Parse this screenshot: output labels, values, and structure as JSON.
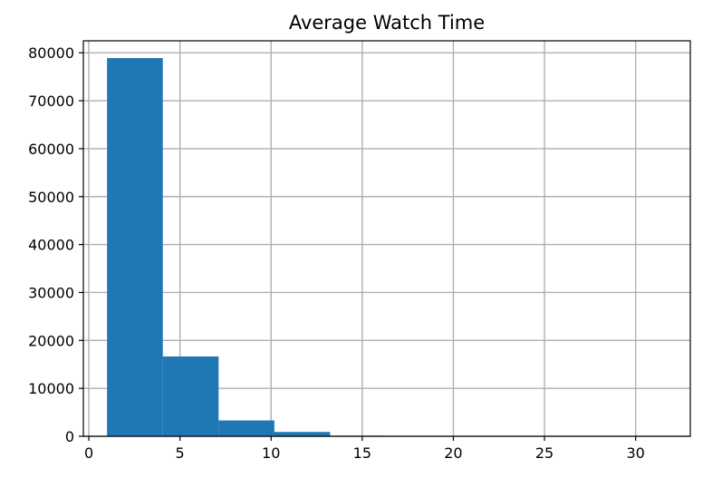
{
  "chart_data": {
    "type": "bar",
    "subtype": "histogram",
    "title": "Average Watch Time",
    "xlabel": "",
    "ylabel": "",
    "bins": [
      {
        "x0": 1.0,
        "x1": 4.06,
        "count": 78900
      },
      {
        "x0": 4.06,
        "x1": 7.12,
        "count": 16650
      },
      {
        "x0": 7.12,
        "x1": 10.18,
        "count": 3300
      },
      {
        "x0": 10.18,
        "x1": 13.24,
        "count": 900
      },
      {
        "x0": 13.24,
        "x1": 16.3,
        "count": 120
      },
      {
        "x0": 16.3,
        "x1": 19.36,
        "count": 40
      },
      {
        "x0": 19.36,
        "x1": 22.42,
        "count": 15
      },
      {
        "x0": 22.42,
        "x1": 25.48,
        "count": 8
      },
      {
        "x0": 25.48,
        "x1": 28.54,
        "count": 4
      },
      {
        "x0": 28.54,
        "x1": 31.6,
        "count": 2
      }
    ],
    "xlim": [
      -0.3,
      33.0
    ],
    "ylim": [
      0,
      82500
    ],
    "xticks": [
      0,
      5,
      10,
      15,
      20,
      25,
      30
    ],
    "xtick_labels": [
      "0",
      "5",
      "10",
      "15",
      "20",
      "25",
      "30"
    ],
    "yticks": [
      0,
      10000,
      20000,
      30000,
      40000,
      50000,
      60000,
      70000,
      80000
    ],
    "ytick_labels": [
      "0",
      "10000",
      "20000",
      "30000",
      "40000",
      "50000",
      "60000",
      "70000",
      "80000"
    ],
    "grid": true,
    "colors": {
      "bar": "#1f77b4",
      "grid": "#b0b0b0",
      "axis": "#000000"
    }
  }
}
